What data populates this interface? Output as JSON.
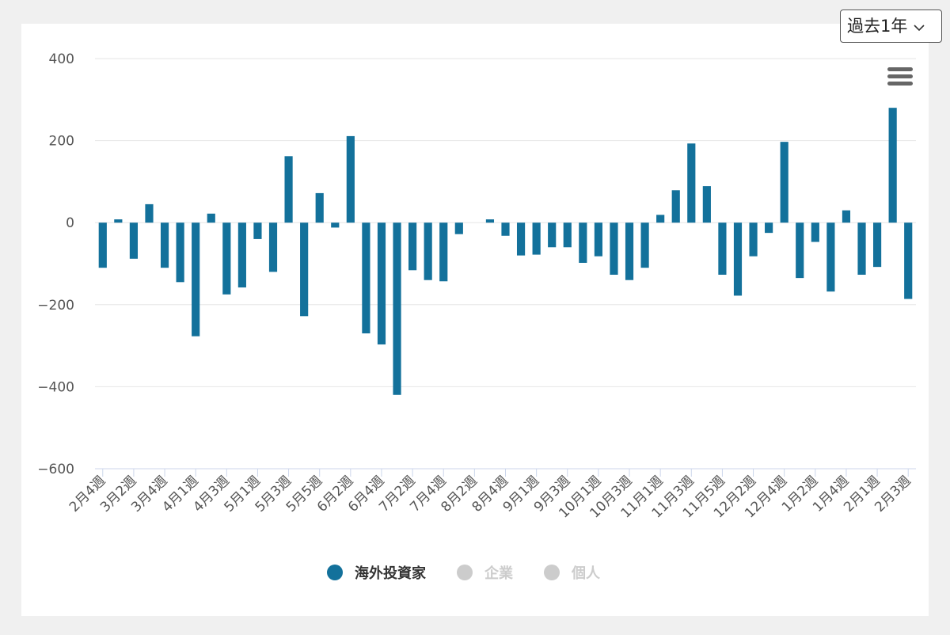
{
  "chart_data": {
    "type": "bar",
    "categories": [
      "2月4週",
      null,
      "3月2週",
      null,
      "3月4週",
      null,
      "4月1週",
      null,
      "4月3週",
      null,
      "5月1週",
      null,
      "5月3週",
      null,
      "5月5週",
      null,
      "6月2週",
      null,
      "6月4週",
      null,
      "7月2週",
      null,
      "7月4週",
      null,
      "8月2週",
      null,
      "8月4週",
      null,
      "9月1週",
      null,
      "9月3週",
      null,
      "10月1週",
      null,
      "10月3週",
      null,
      "11月1週",
      null,
      "11月3週",
      null,
      "11月5週",
      null,
      "12月2週",
      null,
      "12月4週",
      null,
      "1月2週",
      null,
      "1月4週",
      null,
      "2月1週",
      null,
      "2月3週"
    ],
    "series": [
      {
        "name": "海外投資家",
        "color": "#13719b",
        "visible": true,
        "values": [
          -110,
          8,
          -88,
          45,
          -110,
          -145,
          -277,
          22,
          -175,
          -158,
          -40,
          -120,
          162,
          -228,
          72,
          -12,
          211,
          -270,
          -297,
          -420,
          -116,
          -140,
          -143,
          -28,
          0,
          8,
          -32,
          -80,
          -78,
          -60,
          -60,
          -98,
          -82,
          -127,
          -140,
          -110,
          19,
          79,
          193,
          89,
          -127,
          -178,
          -82,
          -25,
          197,
          -135,
          -47,
          -168,
          30,
          -127,
          -108,
          280,
          -186
        ]
      },
      {
        "name": "企業",
        "color": "#cccccc",
        "visible": false
      },
      {
        "name": "個人",
        "color": "#cccccc",
        "visible": false
      }
    ],
    "ylim": [
      -600,
      400
    ],
    "yticks": [
      {
        "value": -600,
        "label": "−600"
      },
      {
        "value": -400,
        "label": "−400"
      },
      {
        "value": -200,
        "label": "−200"
      },
      0,
      200,
      400
    ],
    "grid": true,
    "period_select": "過去1年"
  }
}
